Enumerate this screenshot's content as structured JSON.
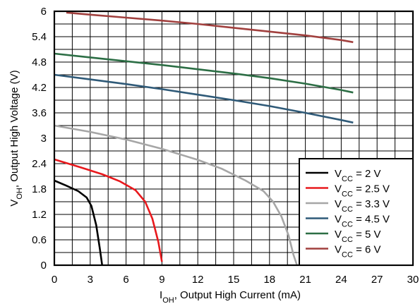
{
  "chart_data": {
    "type": "line",
    "title": "",
    "xlabel": {
      "main": "I",
      "sub": "OH",
      "rest": ", Output High Current (mA)"
    },
    "ylabel": {
      "main": "V",
      "sub": "OH",
      "rest": ", Output High Voltage (V)"
    },
    "xlim": [
      0,
      30
    ],
    "ylim": [
      0,
      6
    ],
    "x_major_ticks": [
      0,
      3,
      6,
      9,
      12,
      15,
      18,
      21,
      24,
      27,
      30
    ],
    "y_major_ticks": [
      0,
      0.6,
      1.2,
      1.8,
      2.4,
      3,
      3.6,
      4.2,
      4.8,
      5.4,
      6
    ],
    "x_tick_labels": [
      "0",
      "3",
      "6",
      "9",
      "12",
      "15",
      "18",
      "21",
      "24",
      "27",
      "30"
    ],
    "y_tick_labels": [
      "0",
      "0.6",
      "1.2",
      "1.8",
      "2.4",
      "3",
      "3.6",
      "4.2",
      "4.8",
      "5.4",
      "6"
    ],
    "grid": true,
    "legend_position": "bottom-right",
    "series": [
      {
        "name": {
          "main": "V",
          "sub": "CC",
          "rest": " = 2 V"
        },
        "color": "#000000",
        "x": [
          0,
          1,
          2,
          2.7,
          3.1,
          3.5,
          3.8,
          4.0
        ],
        "y": [
          2.0,
          1.88,
          1.75,
          1.6,
          1.4,
          0.95,
          0.4,
          0.0
        ]
      },
      {
        "name": {
          "main": "V",
          "sub": "CC",
          "rest": " = 2.5 V"
        },
        "color": "#e8191d",
        "x": [
          0,
          2,
          4,
          5.5,
          6.8,
          7.6,
          8.2,
          8.7,
          9.0
        ],
        "y": [
          2.5,
          2.33,
          2.15,
          1.98,
          1.77,
          1.5,
          1.1,
          0.55,
          0.08
        ]
      },
      {
        "name": {
          "main": "V",
          "sub": "CC",
          "rest": " = 3.3 V"
        },
        "color": "#a6a6a6",
        "x": [
          0,
          3,
          6,
          9,
          12,
          14,
          16,
          17.5,
          18.3,
          19.0,
          19.6,
          20.0,
          20.3
        ],
        "y": [
          3.3,
          3.15,
          2.97,
          2.75,
          2.49,
          2.28,
          2.0,
          1.75,
          1.5,
          1.15,
          0.7,
          0.25,
          0.0
        ]
      },
      {
        "name": {
          "main": "V",
          "sub": "CC",
          "rest": " = 4.5 V"
        },
        "color": "#2f5a78",
        "x": [
          0,
          3,
          6,
          9,
          12,
          15,
          18,
          21,
          24,
          25
        ],
        "y": [
          4.5,
          4.39,
          4.28,
          4.16,
          4.03,
          3.9,
          3.76,
          3.6,
          3.43,
          3.37
        ]
      },
      {
        "name": {
          "main": "V",
          "sub": "CC",
          "rest": " = 5 V"
        },
        "color": "#2c6e45",
        "x": [
          0,
          3,
          6,
          9,
          12,
          15,
          18,
          21,
          24,
          25
        ],
        "y": [
          5.0,
          4.91,
          4.82,
          4.73,
          4.63,
          4.53,
          4.42,
          4.29,
          4.14,
          4.08
        ]
      },
      {
        "name": {
          "main": "V",
          "sub": "CC",
          "rest": " = 6 V"
        },
        "color": "#a1403e",
        "x": [
          1,
          3,
          6,
          9,
          12,
          15,
          18,
          21,
          24,
          25
        ],
        "y": [
          5.97,
          5.92,
          5.85,
          5.78,
          5.7,
          5.61,
          5.52,
          5.43,
          5.32,
          5.27
        ]
      }
    ]
  }
}
